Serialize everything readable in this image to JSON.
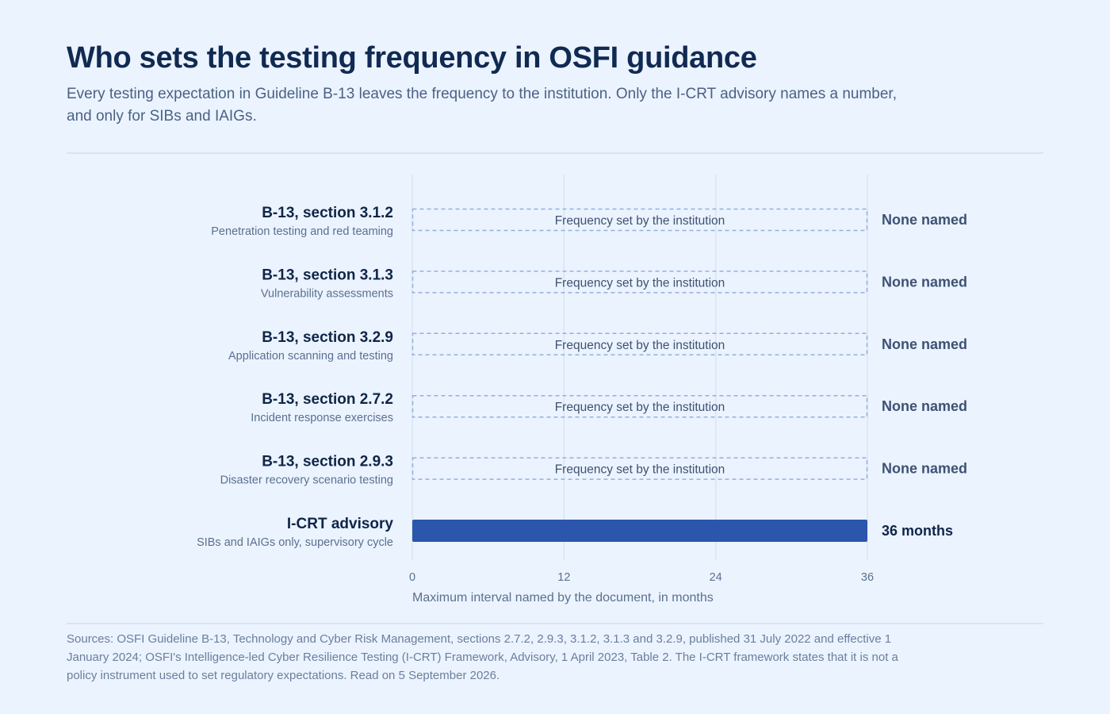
{
  "header": {
    "title": "Who sets the testing frequency in OSFI guidance",
    "subtitle": "Every testing expectation in Guideline B-13 leaves the frequency to the institution. Only the I-CRT advisory names a number, and only for SIBs and IAIGs."
  },
  "footer": {
    "sources": "Sources: OSFI Guideline B-13, Technology and Cyber Risk Management, sections 2.7.2, 2.9.3, 3.1.2, 3.1.3 and 3.2.9, published 31 July 2022 and effective 1 January 2024; OSFI's Intelligence-led Cyber Resilience Testing (I-CRT) Framework, Advisory, 1 April 2023, Table 2. The I-CRT framework states that it is not a policy instrument used to set regulatory expectations. Read on 5 September 2026."
  },
  "colors": {
    "bar": "#2c56ab",
    "dashed_outline": "#92b1dc",
    "grid": "#d9e4f3",
    "label_primary": "#0f2548",
    "label_secondary": "#5a7090",
    "value_muted": "#3d5273",
    "value_strong": "#0f2548"
  },
  "chart_data": {
    "type": "bar",
    "orientation": "horizontal",
    "xlabel": "Maximum interval named by the document, in months",
    "xlim": [
      0,
      36
    ],
    "xticks": [
      0,
      12,
      24,
      36
    ],
    "grid": true,
    "legend": "none",
    "placeholder_text": "Frequency set by the institution",
    "categories": [
      {
        "label": "B-13, section 3.1.2",
        "sublabel": "Penetration testing and red teaming",
        "value": null,
        "value_label": "None named"
      },
      {
        "label": "B-13, section 3.1.3",
        "sublabel": "Vulnerability assessments",
        "value": null,
        "value_label": "None named"
      },
      {
        "label": "B-13, section 3.2.9",
        "sublabel": "Application scanning and testing",
        "value": null,
        "value_label": "None named"
      },
      {
        "label": "B-13, section 2.7.2",
        "sublabel": "Incident response exercises",
        "value": null,
        "value_label": "None named"
      },
      {
        "label": "B-13, section 2.9.3",
        "sublabel": "Disaster recovery scenario testing",
        "value": null,
        "value_label": "None named"
      },
      {
        "label": "I-CRT advisory",
        "sublabel": "SIBs and IAIGs only, supervisory cycle",
        "value": 36,
        "value_label": "36 months"
      }
    ]
  }
}
